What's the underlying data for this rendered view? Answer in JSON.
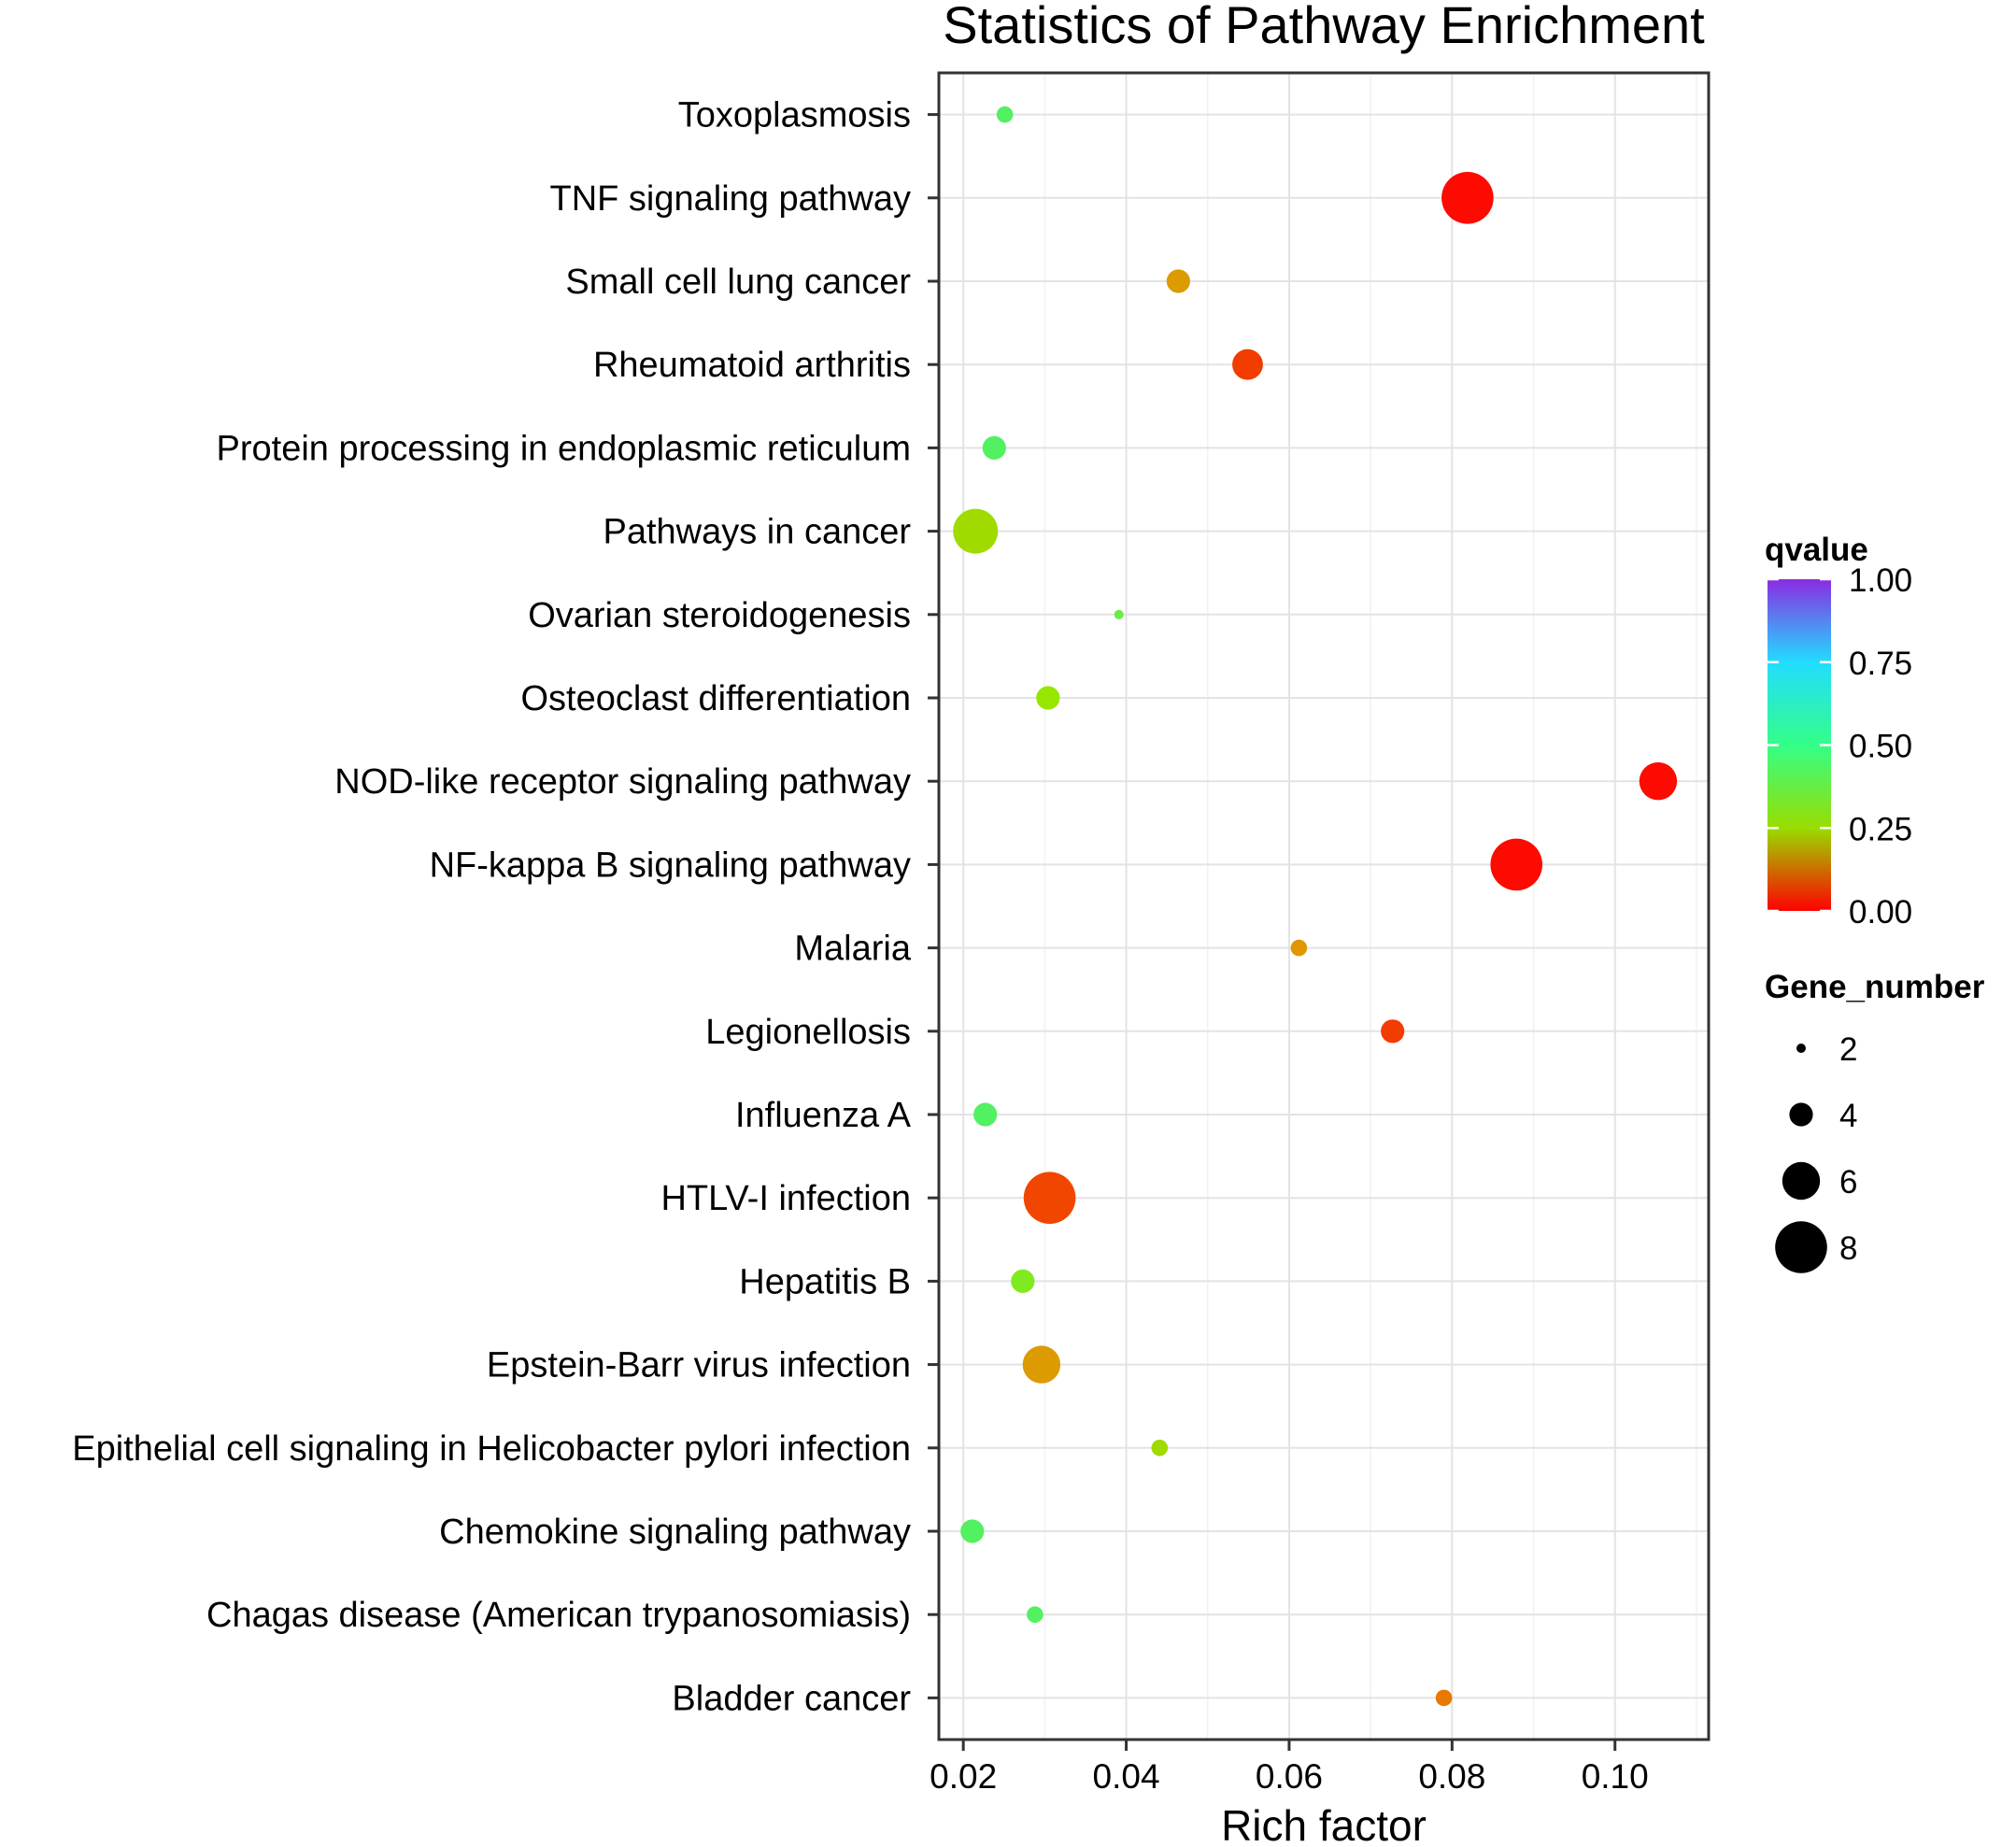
{
  "chart_data": {
    "type": "scatter",
    "title": "Statistics of Pathway Enrichment",
    "xlabel": "Rich factor",
    "ylabel": "",
    "xlim": [
      0.017,
      0.1115
    ],
    "xticks": [
      0.02,
      0.04,
      0.06,
      0.08,
      0.1
    ],
    "xtick_labels": [
      "0.02",
      "0.04",
      "0.06",
      "0.08",
      "0.10"
    ],
    "grid": true,
    "points": [
      {
        "pathway": "Toxoplasmosis",
        "rich_factor": 0.0251,
        "qvalue": 0.45,
        "gene_number": 3
      },
      {
        "pathway": "TNF signaling pathway",
        "rich_factor": 0.0819,
        "qvalue": 0.01,
        "gene_number": 8
      },
      {
        "pathway": "Small cell lung cancer",
        "rich_factor": 0.0464,
        "qvalue": 0.16,
        "gene_number": 4
      },
      {
        "pathway": "Rheumatoid arthritis",
        "rich_factor": 0.0549,
        "qvalue": 0.06,
        "gene_number": 5
      },
      {
        "pathway": "Protein processing in endoplasmic reticulum",
        "rich_factor": 0.0238,
        "qvalue": 0.45,
        "gene_number": 4
      },
      {
        "pathway": "Pathways in cancer",
        "rich_factor": 0.0215,
        "qvalue": 0.28,
        "gene_number": 7
      },
      {
        "pathway": "Ovarian steroidogenesis",
        "rich_factor": 0.0391,
        "qvalue": 0.4,
        "gene_number": 2
      },
      {
        "pathway": "Osteoclast differentiation",
        "rich_factor": 0.0304,
        "qvalue": 0.3,
        "gene_number": 4
      },
      {
        "pathway": "NOD-like receptor signaling pathway",
        "rich_factor": 0.1053,
        "qvalue": 0.01,
        "gene_number": 6
      },
      {
        "pathway": "NF-kappa B signaling pathway",
        "rich_factor": 0.0879,
        "qvalue": 0.01,
        "gene_number": 8
      },
      {
        "pathway": "Malaria",
        "rich_factor": 0.0612,
        "qvalue": 0.15,
        "gene_number": 3
      },
      {
        "pathway": "Legionellosis",
        "rich_factor": 0.0727,
        "qvalue": 0.06,
        "gene_number": 4
      },
      {
        "pathway": "Influenza A",
        "rich_factor": 0.0227,
        "qvalue": 0.45,
        "gene_number": 4
      },
      {
        "pathway": "HTLV-I infection",
        "rich_factor": 0.0306,
        "qvalue": 0.07,
        "gene_number": 8
      },
      {
        "pathway": "Hepatitis B",
        "rich_factor": 0.0273,
        "qvalue": 0.35,
        "gene_number": 4
      },
      {
        "pathway": "Epstein-Barr virus infection",
        "rich_factor": 0.0296,
        "qvalue": 0.16,
        "gene_number": 6
      },
      {
        "pathway": "Epithelial cell signaling in Helicobacter pylori infection",
        "rich_factor": 0.0441,
        "qvalue": 0.28,
        "gene_number": 3
      },
      {
        "pathway": "Chemokine signaling pathway",
        "rich_factor": 0.0211,
        "qvalue": 0.45,
        "gene_number": 4
      },
      {
        "pathway": "Chagas disease (American trypanosomiasis)",
        "rich_factor": 0.0288,
        "qvalue": 0.45,
        "gene_number": 3
      },
      {
        "pathway": "Bladder cancer",
        "rich_factor": 0.079,
        "qvalue": 0.12,
        "gene_number": 3
      }
    ],
    "legend": {
      "color": {
        "title": "qvalue",
        "range": [
          0,
          1
        ],
        "ticks": [
          1.0,
          0.75,
          0.5,
          0.25,
          0.0
        ],
        "tick_labels": [
          "1.00",
          "0.75",
          "0.50",
          "0.25",
          "0.00"
        ],
        "placement": "right"
      },
      "size": {
        "title": "Gene_number",
        "values": [
          2,
          4,
          6,
          8
        ],
        "labels": [
          "2",
          "4",
          "6",
          "8"
        ],
        "placement": "right"
      }
    }
  }
}
